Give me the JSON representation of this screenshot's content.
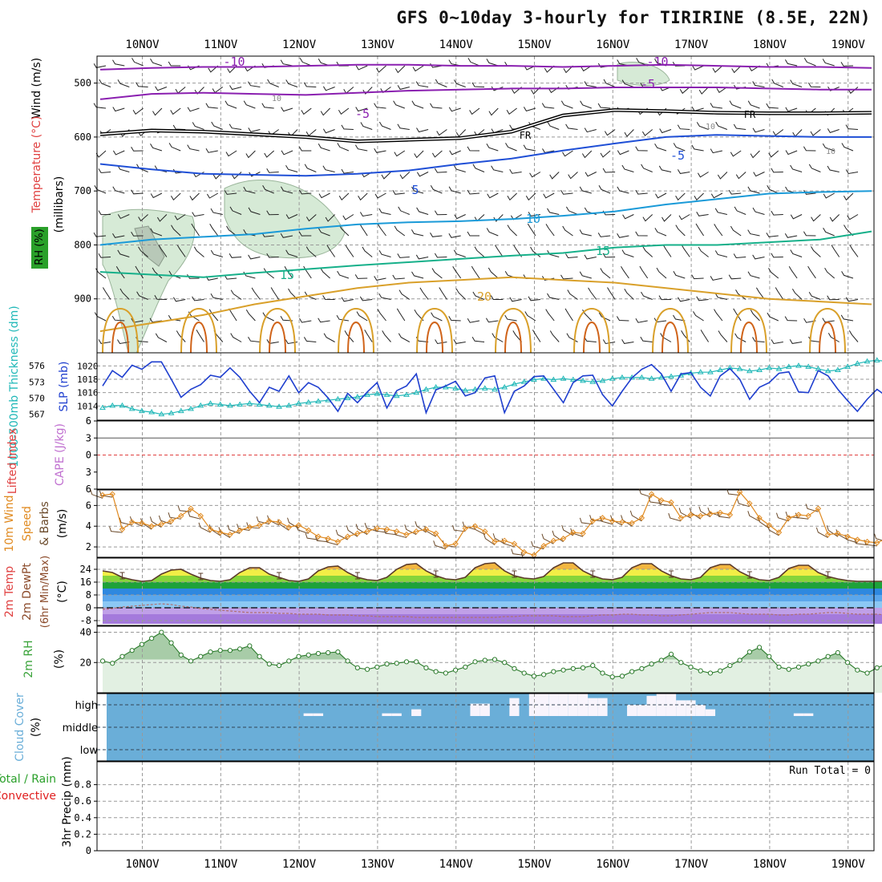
{
  "title": "GFS 0~10day 3-hourly for TIRIRINE (8.5E, 22N)",
  "date_labels": [
    "10NOV",
    "11NOV",
    "12NOV",
    "13NOV",
    "14NOV",
    "15NOV",
    "16NOV",
    "17NOV",
    "18NOV",
    "19NOV"
  ],
  "colors": {
    "bg": "#ffffff",
    "grid": "#999999",
    "axis": "#000000",
    "temp_purple": "#8a1fb0",
    "temp_blue": "#1f4fd6",
    "temp_cyan": "#1a9ad8",
    "temp_green": "#16b08a",
    "temp_orange": "#d9a02a",
    "temp_darkorange": "#d0641a",
    "rh_fill": "#d6ead6",
    "rh_outline": "#9ab59a",
    "slp": "#1f3fcf",
    "thickness": "#20b8b8",
    "li": "#e04040",
    "wind10": "#e08a20",
    "barb": "#6b4a2a",
    "rh2m": "#3aa33a",
    "cloud": "#6aaed8",
    "precip_total": "#2aa02a",
    "precip_conv": "#e02020"
  },
  "chart_data": [
    {
      "type": "contour",
      "id": "upper_air",
      "ylabel_parts": [
        "Wind (m/s)",
        "Temperature (°C)",
        "RH (%)",
        "(millibars)"
      ],
      "y_ticks": [
        500,
        600,
        700,
        800,
        900
      ],
      "ylim": [
        1000,
        450
      ],
      "contour_labels": [
        "-10",
        "-10",
        "-5",
        "-5",
        "-5",
        "FR",
        "FR",
        "10",
        "10",
        "10",
        "-10",
        "5",
        "5",
        "10",
        "15",
        "15",
        "20"
      ],
      "isotherms": [
        {
          "temp": -10,
          "color_key": "temp_purple",
          "values": [
            475,
            472,
            470,
            470,
            468,
            466,
            466,
            468,
            468,
            470,
            468,
            466,
            468,
            470,
            470,
            472
          ]
        },
        {
          "temp": -5,
          "color_key": "temp_purple",
          "values": [
            530,
            520,
            518,
            520,
            522,
            518,
            514,
            512,
            510,
            510,
            508,
            508,
            508,
            510,
            512,
            512
          ]
        },
        {
          "temp": 0,
          "color_key": "axis",
          "values": [
            595,
            588,
            590,
            595,
            600,
            608,
            605,
            602,
            590,
            560,
            550,
            552,
            555,
            556,
            556,
            555
          ]
        },
        {
          "temp": 5,
          "color_key": "temp_blue",
          "values": [
            650,
            660,
            668,
            670,
            672,
            668,
            662,
            650,
            640,
            625,
            612,
            600,
            596,
            598,
            600,
            600
          ]
        },
        {
          "temp": 10,
          "color_key": "temp_cyan",
          "values": [
            800,
            790,
            785,
            780,
            770,
            762,
            758,
            756,
            752,
            746,
            738,
            725,
            715,
            705,
            702,
            700
          ]
        },
        {
          "temp": 15,
          "color_key": "temp_green",
          "values": [
            850,
            855,
            860,
            852,
            845,
            838,
            832,
            826,
            820,
            815,
            805,
            800,
            800,
            795,
            790,
            775
          ]
        },
        {
          "temp": 20,
          "color_key": "temp_orange",
          "values": [
            960,
            945,
            930,
            910,
            895,
            880,
            870,
            865,
            860,
            865,
            870,
            880,
            890,
            900,
            905,
            910
          ]
        }
      ]
    },
    {
      "type": "line",
      "id": "slp_thickness",
      "ylabel_left": "1000-500mb Thickness (dm)",
      "ylabel_right": "SLP (mb)",
      "left_ticks": [
        567,
        570,
        573,
        576
      ],
      "right_ticks": [
        1014,
        1016,
        1018,
        1020
      ],
      "slp": [
        1017.0,
        1019.3,
        1018.3,
        1020.1,
        1019.5,
        1020.6,
        1020.6,
        1018.0,
        1015.3,
        1016.5,
        1017.2,
        1018.6,
        1018.3,
        1019.7,
        1018.3,
        1016.2,
        1014.5,
        1016.8,
        1016.2,
        1018.5,
        1016.0,
        1017.5,
        1016.8,
        1015.2,
        1013.2,
        1015.9,
        1014.5,
        1016.1,
        1017.5,
        1013.7,
        1016.3,
        1017.0,
        1018.8,
        1013.0,
        1016.4,
        1017.0,
        1017.7,
        1015.5,
        1016.0,
        1018.2,
        1018.5,
        1013.0,
        1016.2,
        1017.0,
        1018.4,
        1018.5,
        1016.5,
        1014.5,
        1017.5,
        1018.5,
        1018.6,
        1015.7,
        1014.0,
        1016.2,
        1018.2,
        1019.5,
        1020.2,
        1018.8,
        1016.2,
        1018.8,
        1019.0,
        1016.8,
        1015.5,
        1018.5,
        1019.6,
        1018.0,
        1015.0,
        1016.8,
        1017.5,
        1018.9,
        1019.1,
        1016.1,
        1016.0,
        1019.3,
        1018.5,
        1016.5,
        1014.8,
        1013.2,
        1015.0,
        1016.5,
        1015.4,
        1014.3,
        1015.5
      ],
      "thickness": [
        568.2,
        568.6,
        568.6,
        568.0,
        567.6,
        567.4,
        567.0,
        567.2,
        567.6,
        568.0,
        568.6,
        569.0,
        568.8,
        568.6,
        568.8,
        569.0,
        568.8,
        568.6,
        568.4,
        568.6,
        569.0,
        569.2,
        569.4,
        569.6,
        569.8,
        570.0,
        570.2,
        570.6,
        570.8,
        570.6,
        570.4,
        570.6,
        571.0,
        571.6,
        572.0,
        572.0,
        571.8,
        571.4,
        571.6,
        571.8,
        571.6,
        572.0,
        572.6,
        573.0,
        573.4,
        573.6,
        573.4,
        573.6,
        573.4,
        573.2,
        573.0,
        573.2,
        573.6,
        573.8,
        573.8,
        573.8,
        573.6,
        573.8,
        574.0,
        574.2,
        574.6,
        574.8,
        574.8,
        575.2,
        575.6,
        575.4,
        575.0,
        575.2,
        575.6,
        575.4,
        575.8,
        576.0,
        575.8,
        575.4,
        575.0,
        575.2,
        575.8,
        576.4,
        576.8,
        577.0,
        576.8,
        576.6,
        576.4
      ]
    },
    {
      "type": "line",
      "id": "cape_li",
      "ylabel_left": "CAPE (J/kg)",
      "ylabel_right": "Lifted Index",
      "left_ticks": [
        "6",
        "3",
        "0",
        "3",
        "6"
      ],
      "li_zero": 0,
      "ylim": [
        -6,
        6
      ]
    },
    {
      "type": "line",
      "id": "wind10m",
      "ylabel": "10m Wind Speed & Barbs (m/s)",
      "y_ticks": [
        2,
        4,
        6
      ],
      "ylim": [
        1,
        7.5
      ],
      "values": [
        7.0,
        7.1,
        3.7,
        4.4,
        4.3,
        4.0,
        4.2,
        4.5,
        5.0,
        5.7,
        5.0,
        3.7,
        3.4,
        3.2,
        3.6,
        3.9,
        4.1,
        4.5,
        4.4,
        3.9,
        4.1,
        3.6,
        3.0,
        2.8,
        2.5,
        3.0,
        3.3,
        3.5,
        3.8,
        3.7,
        3.5,
        3.2,
        3.5,
        3.7,
        3.3,
        2.1,
        2.3,
        3.8,
        4.0,
        3.5,
        2.5,
        2.6,
        2.3,
        1.5,
        1.2,
        2.1,
        2.6,
        2.8,
        3.4,
        3.3,
        4.5,
        4.8,
        4.5,
        4.4,
        4.3,
        4.8,
        7.1,
        6.5,
        6.3,
        4.8,
        5.1,
        5.0,
        5.2,
        5.3,
        5.1,
        7.3,
        6.2,
        4.8,
        4.1,
        3.4,
        4.8,
        5.1,
        5.0,
        5.7,
        3.2,
        3.3,
        3.0,
        2.7,
        2.5,
        2.4,
        2.8,
        4.0,
        6.0
      ]
    },
    {
      "type": "area",
      "id": "temp2m",
      "ylabel": "2m Temp 2m DewPt (6hr Min/Max) (°C)",
      "y_ticks": [
        -8,
        0,
        8,
        16,
        24
      ],
      "ylim": [
        -10,
        30
      ],
      "temp": [
        23.0,
        22.0,
        19.0,
        17.5,
        16.5,
        17.0,
        21.0,
        23.5,
        24.0,
        21.0,
        18.5,
        17.0,
        16.5,
        17.5,
        22.0,
        25.0,
        25.0,
        21.0,
        19.0,
        17.0,
        16.5,
        18.0,
        23.0,
        25.5,
        26.0,
        22.0,
        19.0,
        17.5,
        17.0,
        19.0,
        24.0,
        27.0,
        27.5,
        23.0,
        20.0,
        18.0,
        17.5,
        19.0,
        25.0,
        27.5,
        28.0,
        23.0,
        20.0,
        18.5,
        18.0,
        19.5,
        25.0,
        28.0,
        28.0,
        23.0,
        20.0,
        18.0,
        17.5,
        19.0,
        25.0,
        27.5,
        27.5,
        23.0,
        20.0,
        18.0,
        17.5,
        19.0,
        25.0,
        27.0,
        27.0,
        22.5,
        19.5,
        17.5,
        17.0,
        19.0,
        24.5,
        26.5,
        26.5,
        22.0,
        19.5,
        18.0,
        17.0,
        16.5,
        16.5,
        16.5,
        16.5,
        16.0,
        16.0
      ],
      "dewpt": [
        -1.0,
        -0.5,
        0.5,
        1.0,
        1.5,
        2.0,
        2.5,
        2.0,
        1.0,
        0.5,
        -0.5,
        -1.0,
        -1.5,
        -2.0,
        -2.5,
        -3.0,
        -3.0,
        -3.0,
        -3.5,
        -3.5,
        -4.0,
        -4.0,
        -4.0,
        -4.5,
        -4.5,
        -4.5,
        -5.0,
        -5.0,
        -5.5,
        -5.5,
        -5.5,
        -5.5,
        -6.0,
        -6.0,
        -6.0,
        -6.0,
        -6.0,
        -6.0,
        -6.0,
        -6.0,
        -6.0,
        -5.5,
        -5.5,
        -5.0,
        -5.0,
        -5.0,
        -5.0,
        -5.5,
        -5.5,
        -5.5,
        -5.0,
        -4.5,
        -4.5,
        -4.0,
        -4.0,
        -4.5,
        -4.5,
        -5.0,
        -5.0,
        -4.5,
        -4.0,
        -3.5,
        -3.0,
        -3.0,
        -3.0,
        -3.5,
        -4.0,
        -4.0,
        -4.0,
        -4.5,
        -4.5,
        -4.0,
        -4.0,
        -3.5,
        -3.0,
        -3.0,
        -3.5,
        -4.0,
        -4.0,
        -4.0,
        -4.5,
        -4.5,
        -4.5
      ],
      "bands": [
        {
          "from": -10,
          "to": -4,
          "color": "#a47adc"
        },
        {
          "from": -4,
          "to": 0,
          "color": "#c0a0e8"
        },
        {
          "from": 0,
          "to": 4,
          "color": "#8cc8f4"
        },
        {
          "from": 4,
          "to": 8,
          "color": "#5aa6ec"
        },
        {
          "from": 8,
          "to": 12,
          "color": "#2e88e0"
        },
        {
          "from": 12,
          "to": 16,
          "color": "#1ea23a"
        },
        {
          "from": 16,
          "to": 20,
          "color": "#86d43a"
        },
        {
          "from": 20,
          "to": 24,
          "color": "#f2ee46"
        },
        {
          "from": 24,
          "to": 28,
          "color": "#f2b640"
        },
        {
          "from": 28,
          "to": 32,
          "color": "#e8762a"
        }
      ]
    },
    {
      "type": "area",
      "id": "rh2m",
      "ylabel": "2m RH (%)",
      "y_ticks": [
        20,
        40
      ],
      "ylim": [
        0,
        44
      ],
      "values": [
        21.0,
        19.5,
        24.0,
        28.0,
        32.0,
        36.0,
        40.0,
        33.0,
        25.0,
        21.0,
        24.0,
        27.0,
        28.0,
        28.0,
        29.0,
        31.0,
        24.0,
        19.0,
        18.0,
        21.0,
        24.0,
        25.0,
        26.0,
        26.5,
        27.0,
        21.0,
        16.5,
        15.5,
        17.0,
        19.0,
        19.5,
        20.5,
        20.5,
        16.5,
        14.0,
        13.0,
        15.0,
        17.0,
        20.5,
        21.5,
        22.0,
        20.0,
        16.0,
        13.0,
        11.0,
        12.0,
        14.0,
        15.0,
        16.0,
        16.5,
        18.0,
        13.0,
        10.5,
        11.0,
        14.0,
        16.0,
        19.0,
        21.5,
        25.5,
        20.0,
        17.0,
        14.5,
        13.0,
        14.5,
        18.0,
        21.5,
        27.0,
        30.0,
        24.0,
        17.0,
        15.5,
        17.0,
        19.0,
        21.0,
        24.0,
        26.5,
        20.0,
        15.0,
        13.0,
        16.5,
        19.0,
        20.5,
        21.0
      ]
    },
    {
      "type": "heatmap",
      "id": "cloud",
      "ylabel": "Cloud Cover (%)",
      "levels": [
        "high",
        "middle",
        "low"
      ],
      "high_clear": [
        0,
        0,
        0,
        0,
        0,
        0,
        0,
        0,
        0,
        0,
        0,
        0,
        0,
        0,
        0,
        0,
        0,
        0,
        0,
        0,
        0,
        0.12,
        0.12,
        0,
        0,
        0,
        0,
        0,
        0,
        0.12,
        0.12,
        0,
        0.3,
        0,
        0,
        0,
        0,
        0,
        0.55,
        0.55,
        0,
        0,
        0.8,
        0,
        1,
        1,
        1,
        1,
        1,
        1,
        0.8,
        0.8,
        0,
        0,
        0.5,
        0.5,
        0.9,
        1,
        1,
        0.7,
        0.7,
        0.5,
        0.3,
        0,
        0,
        0,
        0,
        0,
        0,
        0,
        0,
        0.12,
        0.12,
        0,
        0,
        0,
        0,
        0,
        0,
        0,
        0,
        0,
        0
      ]
    },
    {
      "type": "bar",
      "id": "precip",
      "ylabel": "3hr Precip (mm)",
      "series_names": [
        "Total / Rain",
        "Convective"
      ],
      "y_ticks": [
        0,
        0.2,
        0.4,
        0.6,
        0.8
      ],
      "ylim": [
        0,
        1
      ],
      "values": [],
      "annotation": "Run Total = 0"
    }
  ]
}
